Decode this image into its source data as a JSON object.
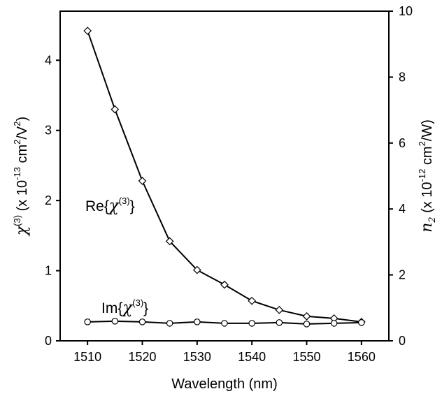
{
  "chart_data": {
    "type": "line",
    "xlabel": "Wavelength (nm)",
    "x_ticks": [
      1510,
      1520,
      1530,
      1540,
      1550,
      1560
    ],
    "xlim": [
      1505,
      1565
    ],
    "ylabel_left": {
      "symbol": "χ",
      "sup": "(3)",
      "text": "(x 10",
      "exp": "-13",
      "unit1": " cm",
      "unit1_sup": "2",
      "unit2": "/V",
      "unit2_sup": "2",
      "close": ")"
    },
    "ylim_left": [
      0,
      4.7
    ],
    "y_ticks_left": [
      0,
      1,
      2,
      3,
      4
    ],
    "ylabel_right": {
      "symbol": "n",
      "sub": "2",
      "text": "(x 10",
      "exp": "-12",
      "unit1": " cm",
      "unit1_sup": "2",
      "unit2": "/W",
      "close": ")"
    },
    "ylim_right": [
      0,
      10
    ],
    "y_ticks_right": [
      0,
      2,
      4,
      6,
      8,
      10
    ],
    "grid": false,
    "series": [
      {
        "label_prefix": "Re{",
        "label_symbol": "χ",
        "label_sup": "(3)",
        "label_suffix": "}",
        "marker": "diamond",
        "x": [
          1510,
          1515,
          1520,
          1525,
          1530,
          1535,
          1540,
          1545,
          1550,
          1555,
          1560
        ],
        "y": [
          4.42,
          3.3,
          2.28,
          1.42,
          1.01,
          0.8,
          0.57,
          0.44,
          0.35,
          0.32,
          0.27
        ]
      },
      {
        "label_prefix": "Im{",
        "label_symbol": "χ",
        "label_sup": "(3)",
        "label_suffix": "}",
        "marker": "circle",
        "x": [
          1510,
          1515,
          1520,
          1525,
          1530,
          1535,
          1540,
          1545,
          1550,
          1555,
          1560
        ],
        "y": [
          0.27,
          0.28,
          0.27,
          0.25,
          0.27,
          0.25,
          0.25,
          0.26,
          0.24,
          0.25,
          0.26
        ]
      }
    ]
  }
}
